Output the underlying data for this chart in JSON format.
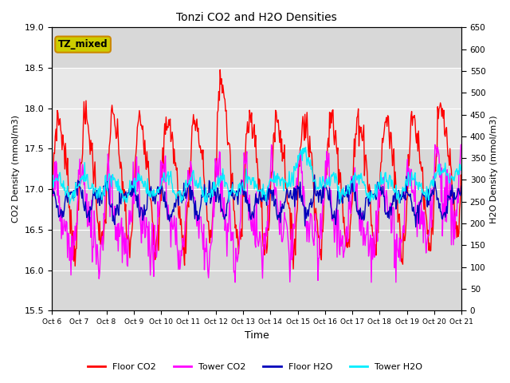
{
  "title": "Tonzi CO2 and H2O Densities",
  "xlabel": "Time",
  "ylabel_left": "CO2 Density (mmol/m3)",
  "ylabel_right": "H2O Density (mmol/m3)",
  "annotation": "TZ_mixed",
  "annotation_facecolor": "#cccc00",
  "annotation_edgecolor": "#cc8800",
  "ylim_left": [
    15.5,
    19.0
  ],
  "ylim_right": [
    0,
    650
  ],
  "yticks_left": [
    15.5,
    16.0,
    16.5,
    17.0,
    17.5,
    18.0,
    18.5,
    19.0
  ],
  "yticks_right": [
    0,
    50,
    100,
    150,
    200,
    250,
    300,
    350,
    400,
    450,
    500,
    550,
    600,
    650
  ],
  "x_tick_labels": [
    "Oct 6",
    "Oct 7",
    "Oct 8",
    "Oct 9",
    "Oct 10",
    "Oct 11",
    "Oct 12",
    "Oct 13",
    "Oct 14",
    "Oct 15",
    "Oct 16",
    "Oct 17",
    "Oct 18",
    "Oct 19",
    "Oct 20",
    "Oct 21"
  ],
  "colors": {
    "floor_co2": "#ff0000",
    "tower_co2": "#ff00ff",
    "floor_h2o": "#0000bb",
    "tower_h2o": "#00eeff"
  },
  "shaded_region": [
    17.5,
    18.5
  ],
  "plot_bg_color": "#d8d8d8",
  "shaded_color": "#e8e8e8",
  "background_color": "#ffffff",
  "linewidth": 1.0,
  "n_points": 600,
  "seed": 7
}
